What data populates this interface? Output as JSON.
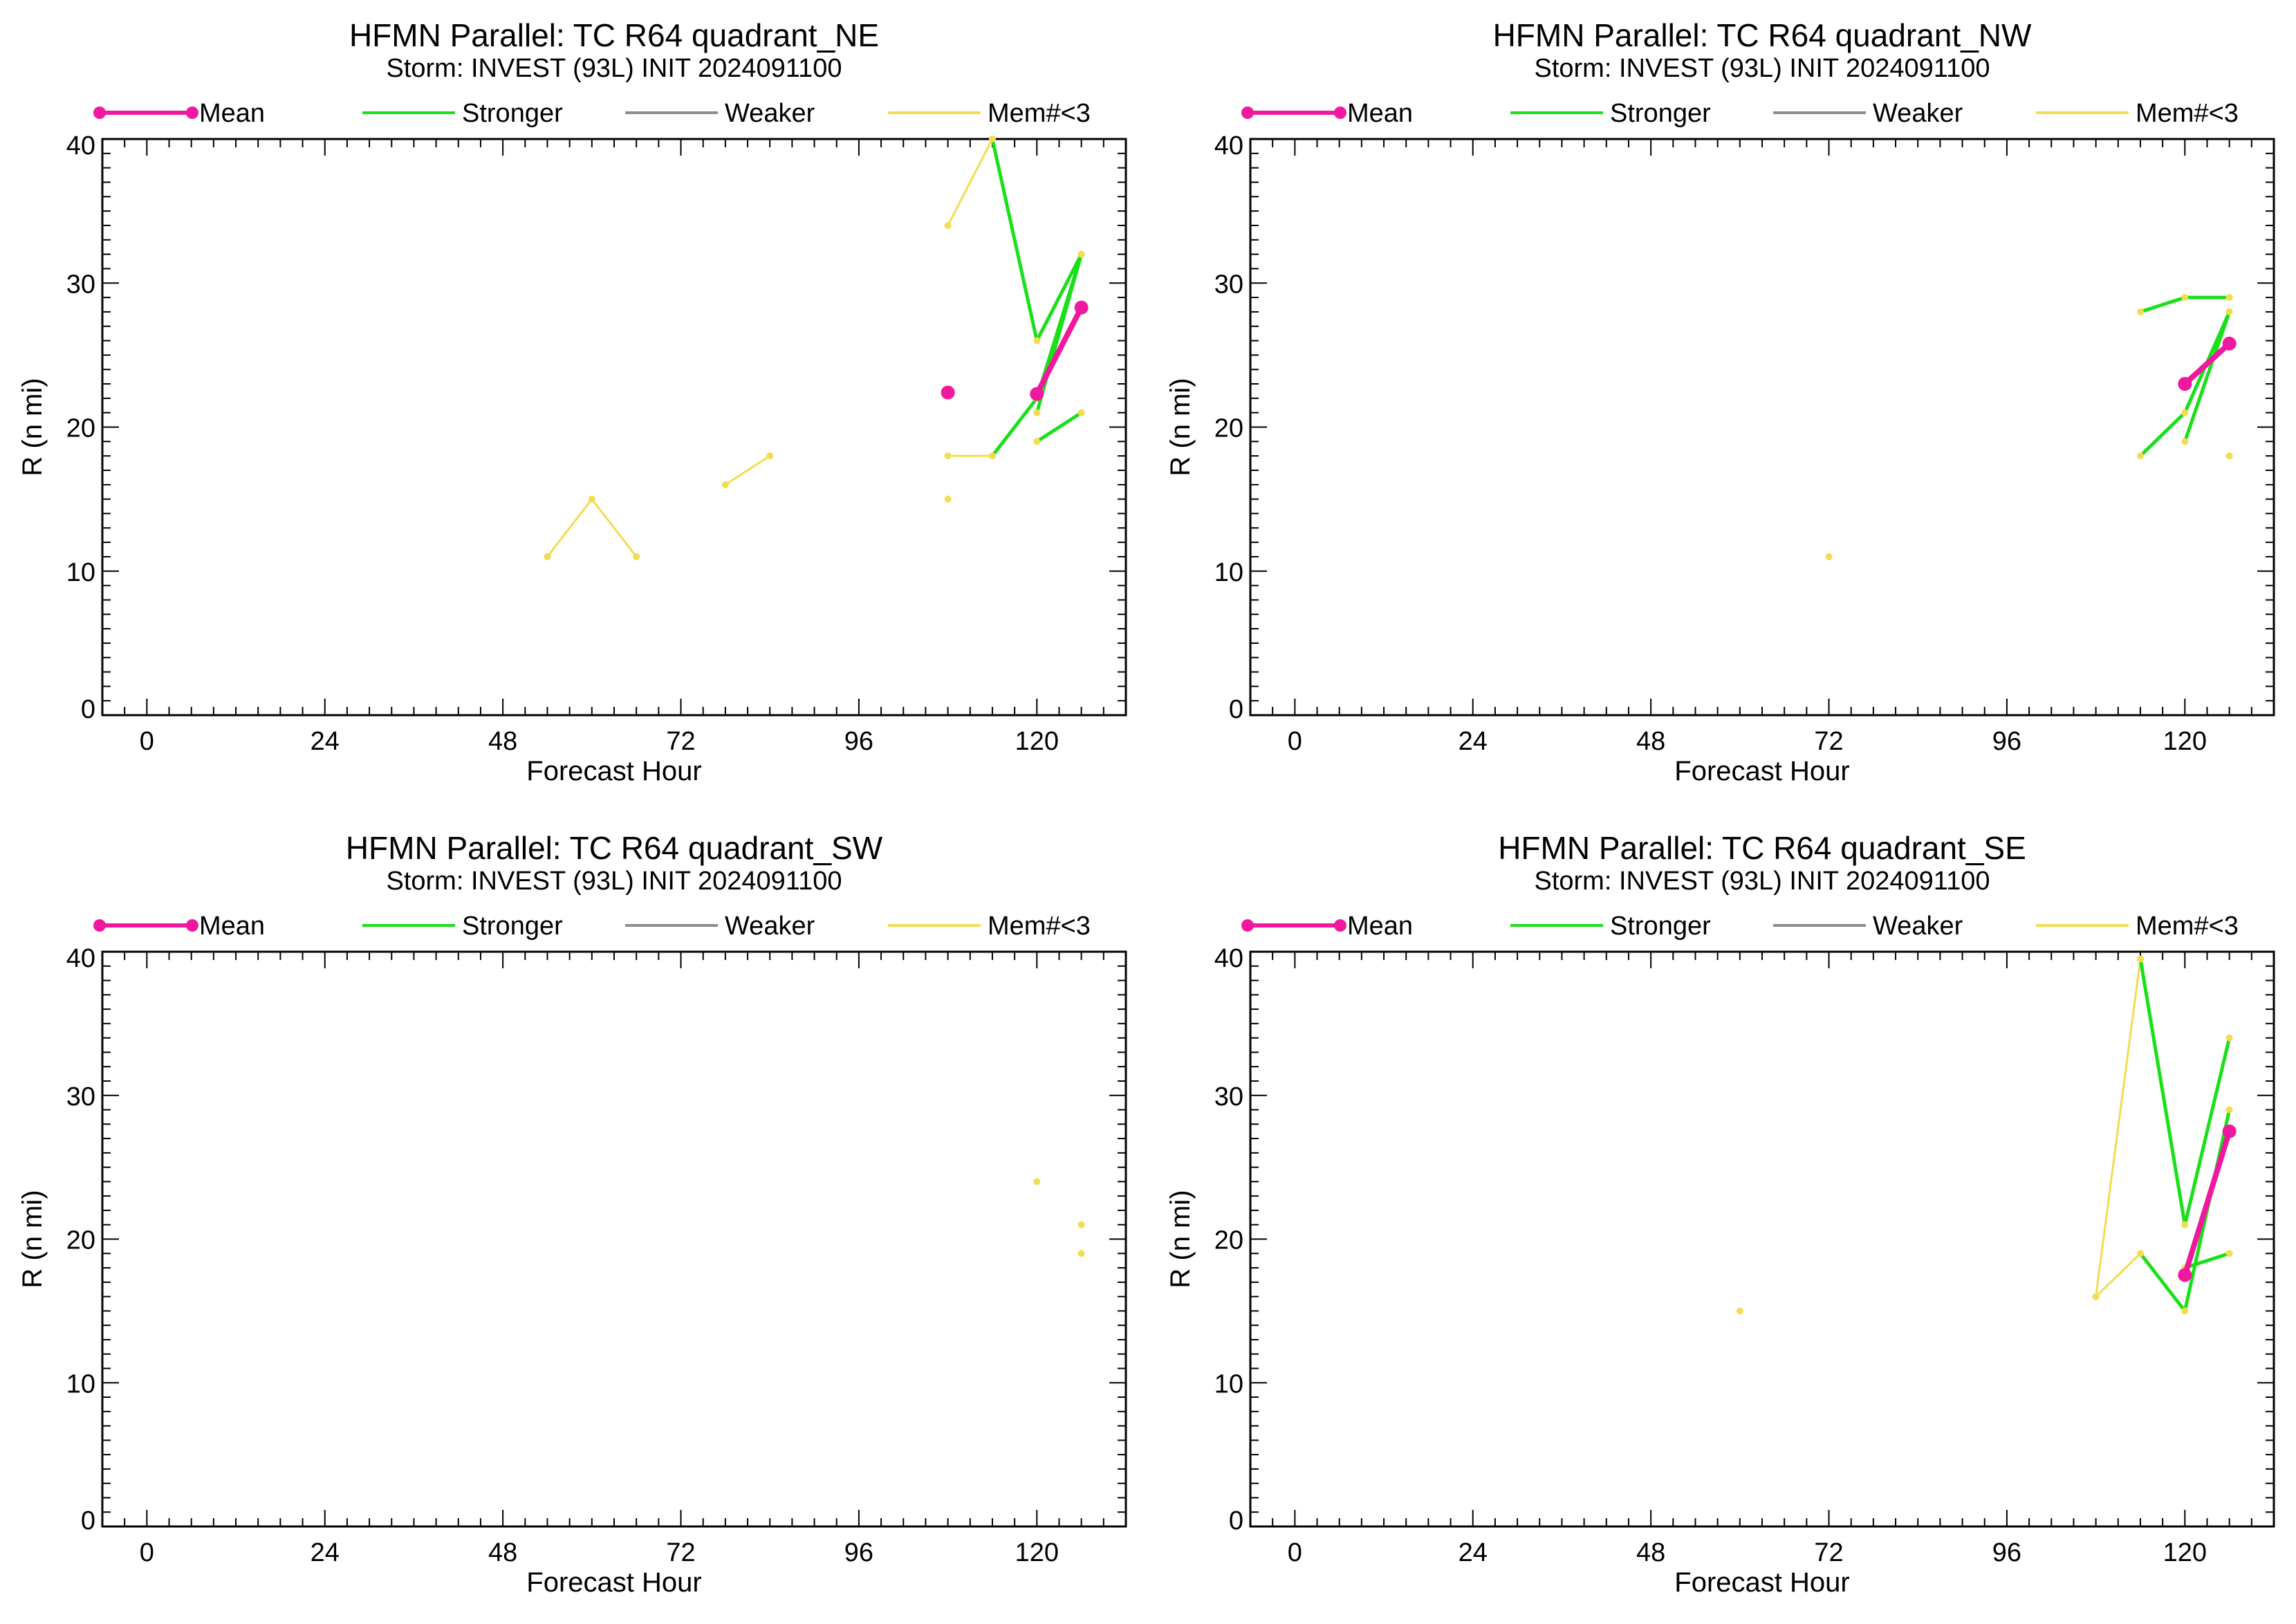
{
  "colors": {
    "mean": "#f0189e",
    "stronger": "#19e019",
    "weaker": "#8c8c8c",
    "few_members": "#f2dc50",
    "axis": "#000000",
    "background": "#ffffff"
  },
  "legend": {
    "mean": "Mean",
    "stronger": "Stronger",
    "weaker": "Weaker",
    "few_members": "Mem#<3"
  },
  "chart_data": [
    {
      "type": "line",
      "title": "HFMN Parallel: TC  R64 quadrant_NE",
      "subtitle": "Storm: INVEST (93L) INIT 2024091100",
      "xlabel": "Forecast Hour",
      "ylabel": "R (n mi)",
      "xlim": [
        -6,
        132
      ],
      "ylim": [
        0,
        40
      ],
      "xticks": [
        0,
        24,
        48,
        72,
        96,
        120
      ],
      "yticks": [
        0,
        10,
        20,
        30,
        40
      ],
      "legend_position": "top",
      "series": [
        {
          "kind": "few_members",
          "points": [
            [
              54,
              11
            ],
            [
              60,
              15
            ],
            [
              66,
              11
            ]
          ]
        },
        {
          "kind": "few_members",
          "points": [
            [
              78,
              16
            ],
            [
              84,
              18
            ]
          ]
        },
        {
          "kind": "few_members",
          "points": [
            [
              108,
              34
            ],
            [
              114,
              40
            ]
          ]
        },
        {
          "kind": "few_members",
          "points": [
            [
              108,
              18
            ],
            [
              114,
              18
            ]
          ]
        },
        {
          "kind": "few_members",
          "points": [
            [
              108,
              15
            ]
          ]
        },
        {
          "kind": "stronger",
          "points": [
            [
              114,
              40
            ],
            [
              120,
              26
            ],
            [
              126,
              32
            ]
          ]
        },
        {
          "kind": "stronger",
          "points": [
            [
              114,
              18
            ],
            [
              120,
              22
            ],
            [
              126,
              32
            ]
          ]
        },
        {
          "kind": "stronger",
          "points": [
            [
              120,
              21
            ],
            [
              126,
              32
            ]
          ]
        },
        {
          "kind": "stronger",
          "points": [
            [
              120,
              19
            ],
            [
              126,
              21
            ]
          ]
        },
        {
          "kind": "mean",
          "points": [
            [
              108,
              22.4
            ]
          ]
        },
        {
          "kind": "mean",
          "points": [
            [
              120,
              22.3
            ],
            [
              126,
              28.3
            ]
          ]
        }
      ]
    },
    {
      "type": "line",
      "title": "HFMN Parallel: TC  R64 quadrant_NW",
      "subtitle": "Storm: INVEST (93L) INIT 2024091100",
      "xlabel": "Forecast Hour",
      "ylabel": "R (n mi)",
      "xlim": [
        -6,
        132
      ],
      "ylim": [
        0,
        40
      ],
      "xticks": [
        0,
        24,
        48,
        72,
        96,
        120
      ],
      "yticks": [
        0,
        10,
        20,
        30,
        40
      ],
      "legend_position": "top",
      "series": [
        {
          "kind": "few_members",
          "points": [
            [
              72,
              11
            ]
          ]
        },
        {
          "kind": "few_members",
          "points": [
            [
              126,
              18
            ]
          ]
        },
        {
          "kind": "stronger",
          "points": [
            [
              114,
              28
            ],
            [
              120,
              29
            ],
            [
              126,
              29
            ]
          ]
        },
        {
          "kind": "stronger",
          "points": [
            [
              114,
              18
            ],
            [
              120,
              21
            ],
            [
              126,
              28
            ]
          ]
        },
        {
          "kind": "stronger",
          "points": [
            [
              120,
              19
            ],
            [
              126,
              28
            ]
          ]
        },
        {
          "kind": "mean",
          "points": [
            [
              120,
              23
            ],
            [
              126,
              25.8
            ]
          ]
        }
      ]
    },
    {
      "type": "line",
      "title": "HFMN Parallel: TC  R64 quadrant_SW",
      "subtitle": "Storm: INVEST (93L) INIT 2024091100",
      "xlabel": "Forecast Hour",
      "ylabel": "R (n mi)",
      "xlim": [
        -6,
        132
      ],
      "ylim": [
        0,
        40
      ],
      "xticks": [
        0,
        24,
        48,
        72,
        96,
        120
      ],
      "yticks": [
        0,
        10,
        20,
        30,
        40
      ],
      "legend_position": "top",
      "series": [
        {
          "kind": "few_members",
          "points": [
            [
              120,
              24
            ]
          ]
        },
        {
          "kind": "few_members",
          "points": [
            [
              126,
              21
            ]
          ]
        },
        {
          "kind": "few_members",
          "points": [
            [
              126,
              19
            ]
          ]
        }
      ]
    },
    {
      "type": "line",
      "title": "HFMN Parallel: TC  R64 quadrant_SE",
      "subtitle": "Storm: INVEST (93L) INIT 2024091100",
      "xlabel": "Forecast Hour",
      "ylabel": "R (n mi)",
      "xlim": [
        -6,
        132
      ],
      "ylim": [
        0,
        40
      ],
      "xticks": [
        0,
        24,
        48,
        72,
        96,
        120
      ],
      "yticks": [
        0,
        10,
        20,
        30,
        40
      ],
      "legend_position": "top",
      "series": [
        {
          "kind": "few_members",
          "points": [
            [
              60,
              15
            ]
          ]
        },
        {
          "kind": "few_members",
          "points": [
            [
              108,
              16
            ],
            [
              114,
              39.5
            ]
          ]
        },
        {
          "kind": "few_members",
          "points": [
            [
              108,
              16
            ],
            [
              114,
              19
            ]
          ]
        },
        {
          "kind": "stronger",
          "points": [
            [
              114,
              39.5
            ],
            [
              120,
              21
            ],
            [
              126,
              34
            ]
          ]
        },
        {
          "kind": "stronger",
          "points": [
            [
              114,
              19
            ],
            [
              120,
              15
            ],
            [
              126,
              29
            ]
          ]
        },
        {
          "kind": "stronger",
          "points": [
            [
              120,
              18
            ],
            [
              126,
              19
            ]
          ]
        },
        {
          "kind": "mean",
          "points": [
            [
              120,
              17.5
            ],
            [
              126,
              27.5
            ]
          ]
        }
      ]
    }
  ]
}
